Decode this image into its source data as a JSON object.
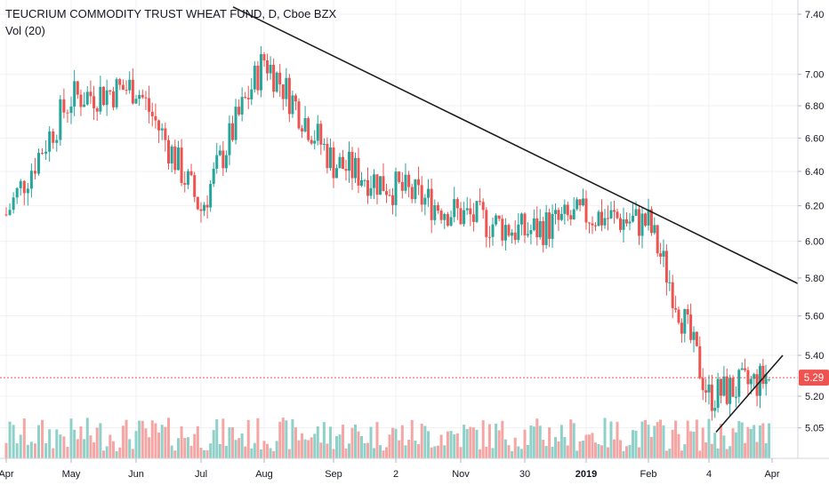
{
  "legend": {
    "symbol": "TEUCRIUM COMMODITY TRUST WHEAT FUND, D, Cboe BZX",
    "indicator": "Vol (20)"
  },
  "colors": {
    "up": "#26a69a",
    "down": "#ef5350",
    "up_volume": "#8fd1c9",
    "down_volume": "#f5a6a4",
    "trendline": "#1e1e1e",
    "last_price": "#ef5350",
    "axis_text": "#131722",
    "grid": "#e1e3ea"
  },
  "chart_data": {
    "type": "candlestick",
    "price_axis_ticks": [
      "7.40",
      "7.00",
      "6.80",
      "6.60",
      "6.40",
      "6.20",
      "6.00",
      "5.80",
      "5.60",
      "5.40",
      "5.20",
      "5.05"
    ],
    "time_axis_labels": [
      "Apr",
      "May",
      "Jun",
      "Jul",
      "Aug",
      "Sep",
      "2",
      "Nov",
      "30",
      "2019",
      "Feb",
      "4",
      "Apr"
    ],
    "last_price_label": "5.29",
    "last_price": 5.29,
    "close_path": [
      {
        "date": "Apr",
        "close": 6.15
      },
      {
        "date": "May",
        "close": 6.85
      },
      {
        "date": "Jun",
        "close": 6.92
      },
      {
        "date": "Jul",
        "close": 6.18
      },
      {
        "date": "Aug",
        "close": 7.1
      },
      {
        "date": "Sep",
        "close": 6.45
      },
      {
        "date": "2",
        "close": 6.3
      },
      {
        "date": "Nov",
        "close": 6.15
      },
      {
        "date": "30",
        "close": 6.05
      },
      {
        "date": "2019",
        "close": 6.15
      },
      {
        "date": "Feb",
        "close": 6.1
      },
      {
        "date": "4",
        "close": 5.2
      },
      {
        "date": "Apr",
        "close": 5.29
      }
    ],
    "trendlines": [
      {
        "from": {
          "date": "Jul",
          "price": 7.45
        },
        "to": {
          "date": "Apr",
          "price": 5.77
        }
      },
      {
        "from": {
          "date": "4",
          "price": 5.03
        },
        "to": {
          "date": "Apr",
          "price": 5.4
        }
      }
    ]
  }
}
